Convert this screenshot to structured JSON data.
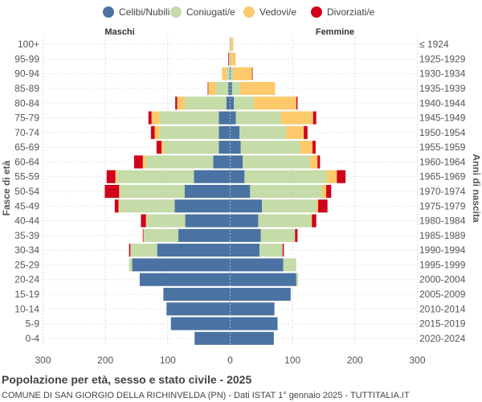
{
  "chart_data": {
    "type": "bar",
    "orientation": "horizontal-pyramid",
    "title": "Popolazione per età, sesso e stato civile - 2025",
    "subtitle": "COMUNE DI SAN GIORGIO DELLA RICHINVELDA (PN) - Dati ISTAT 1° gennaio 2025 - TUTTITALIA.IT",
    "left_label": "Maschi",
    "right_label": "Femmine",
    "ylabel_left": "Fasce di età",
    "ylabel_right": "Anni di nascita",
    "xlim": [
      -300,
      300
    ],
    "x_ticks": [
      -300,
      -200,
      -100,
      0,
      100,
      200,
      300
    ],
    "x_tick_labels": [
      "300",
      "200",
      "100",
      "0",
      "100",
      "200",
      "300"
    ],
    "grid": true,
    "legend_position": "top",
    "age_groups": [
      "100+",
      "95-99",
      "90-94",
      "85-89",
      "80-84",
      "75-79",
      "70-74",
      "65-69",
      "60-64",
      "55-59",
      "50-54",
      "45-49",
      "40-44",
      "35-39",
      "30-34",
      "25-29",
      "20-24",
      "15-19",
      "10-14",
      "5-9",
      "0-4"
    ],
    "birth_years": [
      "≤ 1924",
      "1925-1929",
      "1930-1934",
      "1935-1939",
      "1940-1944",
      "1945-1949",
      "1950-1954",
      "1955-1959",
      "1960-1964",
      "1965-1969",
      "1970-1974",
      "1975-1979",
      "1980-1984",
      "1985-1989",
      "1990-1994",
      "1995-1999",
      "2000-2004",
      "2005-2009",
      "2010-2014",
      "2015-2019",
      "2020-2024"
    ],
    "series": [
      {
        "name": "Celibi/Nubili",
        "color": "#4a72a2",
        "male": [
          0,
          0,
          1,
          3,
          6,
          18,
          18,
          18,
          27,
          58,
          73,
          89,
          72,
          83,
          117,
          157,
          145,
          107,
          102,
          95,
          57
        ],
        "female": [
          0,
          0,
          1,
          3,
          6,
          9,
          15,
          17,
          20,
          23,
          32,
          51,
          45,
          49,
          47,
          85,
          106,
          97,
          71,
          76,
          70
        ]
      },
      {
        "name": "Coniugati/e",
        "color": "#c5dba8",
        "male": [
          0,
          1,
          5,
          20,
          67,
          95,
          95,
          88,
          108,
          123,
          104,
          89,
          62,
          55,
          43,
          5,
          0,
          0,
          0,
          0,
          0
        ],
        "female": [
          2,
          2,
          4,
          13,
          32,
          72,
          75,
          95,
          108,
          132,
          115,
          87,
          85,
          55,
          37,
          21,
          3,
          0,
          0,
          0,
          0
        ]
      },
      {
        "name": "Vedovi/e",
        "color": "#fdc96a",
        "male": [
          1,
          1,
          7,
          12,
          12,
          13,
          8,
          4,
          5,
          3,
          1,
          1,
          1,
          1,
          0,
          0,
          0,
          0,
          0,
          0,
          0
        ],
        "female": [
          3,
          7,
          30,
          56,
          68,
          52,
          28,
          20,
          12,
          16,
          7,
          3,
          1,
          0,
          0,
          0,
          0,
          0,
          0,
          0,
          0
        ]
      },
      {
        "name": "Divorziati/e",
        "color": "#d0021b",
        "male": [
          0,
          1,
          0,
          1,
          3,
          5,
          6,
          8,
          14,
          14,
          23,
          6,
          8,
          1,
          2,
          0,
          0,
          0,
          0,
          0,
          0
        ],
        "female": [
          0,
          0,
          1,
          0,
          2,
          5,
          6,
          5,
          4,
          14,
          8,
          15,
          7,
          4,
          2,
          0,
          0,
          0,
          0,
          0,
          0
        ]
      }
    ]
  }
}
